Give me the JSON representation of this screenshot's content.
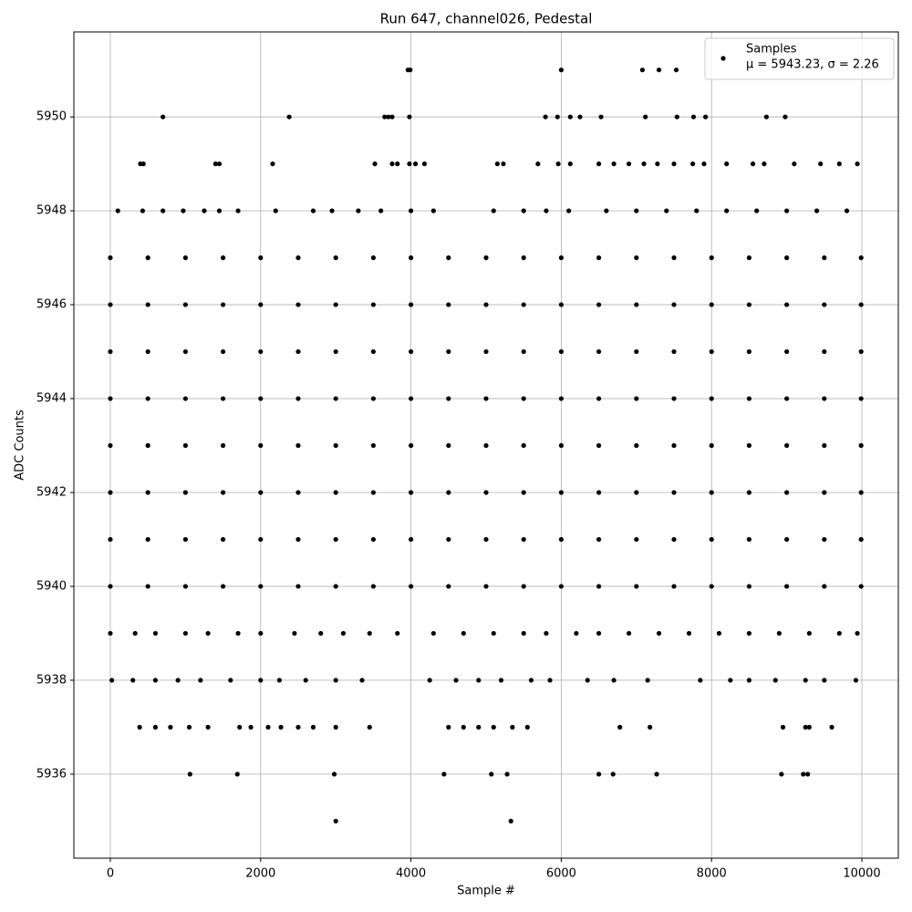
{
  "chart_data": {
    "type": "scatter",
    "title": "Run 647, channel026, Pedestal",
    "x_label": "Sample #",
    "y_label": "ADC Counts",
    "xlim": [
      -485,
      10485
    ],
    "ylim": [
      5934.21,
      5951.81
    ],
    "xticks": [
      0,
      2000,
      4000,
      6000,
      8000,
      10000
    ],
    "yticks": [
      5936,
      5938,
      5940,
      5942,
      5944,
      5946,
      5948,
      5950
    ],
    "grid": true,
    "legend_position": "upper right",
    "legend_note": "μ = 5943.23, σ = 2.26",
    "series": [
      {
        "name": "Samples",
        "color": "#000000",
        "x": [
          3960,
          3990,
          6000,
          7080,
          7300,
          7530,
          700,
          2380,
          3650,
          3700,
          3750,
          3980,
          5790,
          5950,
          6120,
          6250,
          6530,
          7120,
          7540,
          7760,
          7920,
          8730,
          8980,
          400,
          440,
          1400,
          1450,
          2160,
          3520,
          3750,
          3820,
          3980,
          4060,
          4180,
          5150,
          5230,
          5690,
          5960,
          6120,
          6500,
          6700,
          6900,
          7100,
          7280,
          7500,
          7750,
          7900,
          8200,
          8550,
          8700,
          9100,
          9450,
          9700,
          9940,
          100,
          430,
          700,
          970,
          1250,
          1450,
          1700,
          2200,
          2700,
          2950,
          3300,
          3600,
          4000,
          4300,
          5100,
          5500,
          5800,
          6100,
          6600,
          7000,
          7400,
          7800,
          8200,
          8600,
          9000,
          9400,
          9800,
          0,
          500,
          1000,
          1500,
          2000,
          2500,
          3000,
          3500,
          4000,
          4500,
          5000,
          5500,
          6000,
          6500,
          7000,
          7500,
          8000,
          8500,
          9000,
          9500,
          9990,
          0,
          500,
          1000,
          1500,
          2000,
          2500,
          3000,
          3500,
          4000,
          4500,
          5000,
          5500,
          6000,
          6500,
          7000,
          7500,
          8000,
          8500,
          9000,
          9500,
          9990,
          0,
          500,
          1000,
          1500,
          2000,
          2500,
          3000,
          3500,
          4000,
          4500,
          5000,
          5500,
          6000,
          6500,
          7000,
          7500,
          8000,
          8500,
          9000,
          9500,
          9990,
          0,
          500,
          1000,
          1500,
          2000,
          2500,
          3000,
          3500,
          4000,
          4500,
          5000,
          5500,
          6000,
          6500,
          7000,
          7500,
          8000,
          8500,
          9000,
          9500,
          9990,
          0,
          500,
          1000,
          1500,
          2000,
          2500,
          3000,
          3500,
          4000,
          4500,
          5000,
          5500,
          6000,
          6500,
          7000,
          7500,
          8000,
          8500,
          9000,
          9500,
          9990,
          0,
          500,
          1000,
          1500,
          2000,
          2500,
          3000,
          3500,
          4000,
          4500,
          5000,
          5500,
          6000,
          6500,
          7000,
          7500,
          8000,
          8500,
          9000,
          9500,
          9990,
          0,
          500,
          1000,
          1500,
          2000,
          2500,
          3000,
          3500,
          4000,
          4500,
          5000,
          5500,
          6000,
          6500,
          7000,
          7500,
          8000,
          8500,
          9000,
          9500,
          9990,
          0,
          500,
          1000,
          1500,
          2000,
          2500,
          3000,
          3500,
          4000,
          4500,
          5000,
          5500,
          6000,
          6500,
          7000,
          7500,
          8000,
          8500,
          9000,
          9500,
          9990,
          0,
          330,
          600,
          1000,
          1300,
          1700,
          2000,
          2450,
          2800,
          3100,
          3450,
          3820,
          4300,
          4700,
          5100,
          5500,
          5800,
          6200,
          6500,
          6900,
          7300,
          7700,
          8100,
          8500,
          8900,
          9300,
          9700,
          9940,
          20,
          300,
          600,
          900,
          1200,
          1600,
          2000,
          2250,
          2600,
          3000,
          3350,
          4250,
          4600,
          4900,
          5200,
          5600,
          5850,
          6350,
          6700,
          7150,
          7850,
          8250,
          8500,
          8850,
          9250,
          9500,
          9920,
          390,
          600,
          800,
          1050,
          1300,
          1720,
          1870,
          2100,
          2270,
          2500,
          2700,
          3000,
          3450,
          4500,
          4700,
          4900,
          5100,
          5350,
          5550,
          6780,
          7180,
          8950,
          9250,
          9300,
          9600,
          1060,
          1690,
          2980,
          4440,
          5070,
          5280,
          6500,
          6690,
          7270,
          8930,
          9220,
          9280,
          3000,
          5330
        ],
        "values": [
          5951,
          5951,
          5951,
          5951,
          5951,
          5951,
          5950,
          5950,
          5950,
          5950,
          5950,
          5950,
          5950,
          5950,
          5950,
          5950,
          5950,
          5950,
          5950,
          5950,
          5950,
          5950,
          5950,
          5949,
          5949,
          5949,
          5949,
          5949,
          5949,
          5949,
          5949,
          5949,
          5949,
          5949,
          5949,
          5949,
          5949,
          5949,
          5949,
          5949,
          5949,
          5949,
          5949,
          5949,
          5949,
          5949,
          5949,
          5949,
          5949,
          5949,
          5949,
          5949,
          5949,
          5949,
          5948,
          5948,
          5948,
          5948,
          5948,
          5948,
          5948,
          5948,
          5948,
          5948,
          5948,
          5948,
          5948,
          5948,
          5948,
          5948,
          5948,
          5948,
          5948,
          5948,
          5948,
          5948,
          5948,
          5948,
          5948,
          5948,
          5948,
          5947,
          5947,
          5947,
          5947,
          5947,
          5947,
          5947,
          5947,
          5947,
          5947,
          5947,
          5947,
          5947,
          5947,
          5947,
          5947,
          5947,
          5947,
          5947,
          5947,
          5947,
          5946,
          5946,
          5946,
          5946,
          5946,
          5946,
          5946,
          5946,
          5946,
          5946,
          5946,
          5946,
          5946,
          5946,
          5946,
          5946,
          5946,
          5946,
          5946,
          5946,
          5946,
          5945,
          5945,
          5945,
          5945,
          5945,
          5945,
          5945,
          5945,
          5945,
          5945,
          5945,
          5945,
          5945,
          5945,
          5945,
          5945,
          5945,
          5945,
          5945,
          5945,
          5945,
          5944,
          5944,
          5944,
          5944,
          5944,
          5944,
          5944,
          5944,
          5944,
          5944,
          5944,
          5944,
          5944,
          5944,
          5944,
          5944,
          5944,
          5944,
          5944,
          5944,
          5944,
          5943,
          5943,
          5943,
          5943,
          5943,
          5943,
          5943,
          5943,
          5943,
          5943,
          5943,
          5943,
          5943,
          5943,
          5943,
          5943,
          5943,
          5943,
          5943,
          5943,
          5943,
          5942,
          5942,
          5942,
          5942,
          5942,
          5942,
          5942,
          5942,
          5942,
          5942,
          5942,
          5942,
          5942,
          5942,
          5942,
          5942,
          5942,
          5942,
          5942,
          5942,
          5942,
          5941,
          5941,
          5941,
          5941,
          5941,
          5941,
          5941,
          5941,
          5941,
          5941,
          5941,
          5941,
          5941,
          5941,
          5941,
          5941,
          5941,
          5941,
          5941,
          5941,
          5941,
          5940,
          5940,
          5940,
          5940,
          5940,
          5940,
          5940,
          5940,
          5940,
          5940,
          5940,
          5940,
          5940,
          5940,
          5940,
          5940,
          5940,
          5940,
          5940,
          5940,
          5940,
          5939,
          5939,
          5939,
          5939,
          5939,
          5939,
          5939,
          5939,
          5939,
          5939,
          5939,
          5939,
          5939,
          5939,
          5939,
          5939,
          5939,
          5939,
          5939,
          5939,
          5939,
          5939,
          5939,
          5939,
          5939,
          5939,
          5939,
          5939,
          5938,
          5938,
          5938,
          5938,
          5938,
          5938,
          5938,
          5938,
          5938,
          5938,
          5938,
          5938,
          5938,
          5938,
          5938,
          5938,
          5938,
          5938,
          5938,
          5938,
          5938,
          5938,
          5938,
          5938,
          5938,
          5938,
          5938,
          5937,
          5937,
          5937,
          5937,
          5937,
          5937,
          5937,
          5937,
          5937,
          5937,
          5937,
          5937,
          5937,
          5937,
          5937,
          5937,
          5937,
          5937,
          5937,
          5937,
          5937,
          5937,
          5937,
          5937,
          5937,
          5936,
          5936,
          5936,
          5936,
          5936,
          5936,
          5936,
          5936,
          5936,
          5936,
          5936,
          5936,
          5935,
          5935
        ]
      }
    ]
  }
}
